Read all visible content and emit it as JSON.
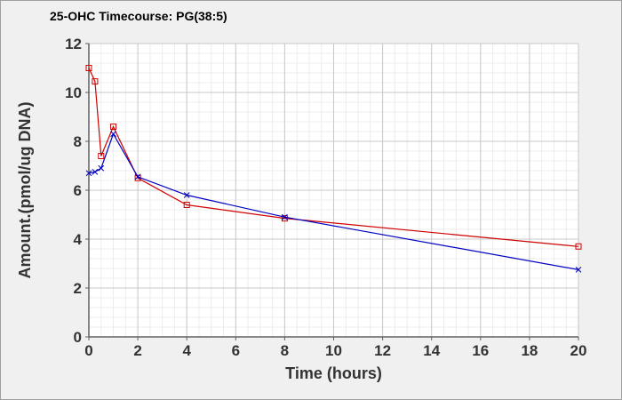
{
  "chart_data": {
    "type": "line",
    "title": "25-OHC Timecourse: PG(38:5)",
    "xlabel": "Time (hours)",
    "ylabel": "Amount.(pmol/ug DNA)",
    "xlim": [
      0,
      20
    ],
    "ylim": [
      0,
      12
    ],
    "x_ticks": [
      0,
      2,
      4,
      6,
      8,
      10,
      12,
      14,
      16,
      18,
      20
    ],
    "y_ticks": [
      0,
      2,
      4,
      6,
      8,
      10,
      12
    ],
    "grid": true,
    "legend": "none",
    "series": [
      {
        "color": "#d00000",
        "marker": "square",
        "x": [
          0,
          0.25,
          0.5,
          1,
          2,
          4,
          8,
          20
        ],
        "y": [
          11.0,
          10.45,
          7.4,
          8.6,
          6.5,
          5.4,
          4.85,
          3.7
        ]
      },
      {
        "color": "#0000c0",
        "marker": "x",
        "x": [
          0,
          0.25,
          0.5,
          1,
          2,
          4,
          8,
          20
        ],
        "y": [
          6.7,
          6.75,
          6.9,
          8.3,
          6.55,
          5.8,
          4.9,
          2.75
        ]
      }
    ]
  }
}
